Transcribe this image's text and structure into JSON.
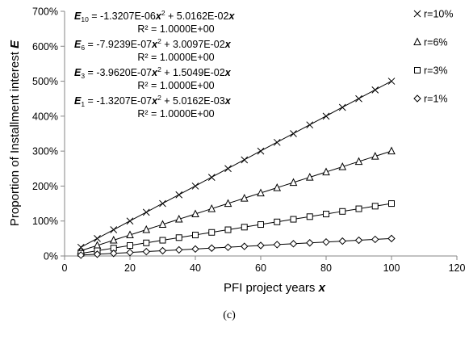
{
  "chart_data": {
    "type": "scatter",
    "xlabel_text": "PFI project years ",
    "xlabel_var": "x",
    "ylabel_text": "Proportion of Installment interest ",
    "ylabel_var": "E",
    "xlim": [
      0,
      120
    ],
    "ylim": [
      0,
      7
    ],
    "x_ticks": [
      0,
      20,
      40,
      60,
      80,
      100,
      120
    ],
    "x_tick_labels": [
      "0",
      "20",
      "40",
      "60",
      "80",
      "100",
      "120"
    ],
    "y_ticks": [
      0,
      1,
      2,
      3,
      4,
      5,
      6,
      7
    ],
    "y_tick_labels": [
      "0%",
      "100%",
      "200%",
      "300%",
      "400%",
      "500%",
      "600%",
      "700%"
    ],
    "grid": false,
    "legend_position": "top-right outside",
    "x": [
      5,
      10,
      15,
      20,
      25,
      30,
      35,
      40,
      45,
      50,
      55,
      60,
      65,
      70,
      75,
      80,
      85,
      90,
      95,
      100
    ],
    "series": [
      {
        "name": "r=10%",
        "marker": "x",
        "values": [
          0.25,
          0.5,
          0.75,
          1.0,
          1.25,
          1.5,
          1.75,
          2.0,
          2.25,
          2.5,
          2.75,
          3.0,
          3.25,
          3.5,
          3.75,
          4.0,
          4.25,
          4.5,
          4.75,
          5.0
        ],
        "trend_a": -1.3207e-06,
        "trend_b": 0.050162
      },
      {
        "name": "r=6%",
        "marker": "triangle",
        "values": [
          0.15,
          0.3,
          0.45,
          0.6,
          0.75,
          0.9,
          1.05,
          1.2,
          1.35,
          1.5,
          1.65,
          1.8,
          1.95,
          2.1,
          2.25,
          2.4,
          2.55,
          2.7,
          2.85,
          3.0
        ],
        "trend_a": -7.9239e-07,
        "trend_b": 0.030097
      },
      {
        "name": "r=3%",
        "marker": "square",
        "values": [
          0.075,
          0.15,
          0.225,
          0.3,
          0.375,
          0.45,
          0.525,
          0.6,
          0.675,
          0.75,
          0.825,
          0.9,
          0.975,
          1.05,
          1.125,
          1.2,
          1.275,
          1.35,
          1.425,
          1.5
        ],
        "trend_a": -3.962e-07,
        "trend_b": 0.015049
      },
      {
        "name": "r=1%",
        "marker": "diamond",
        "values": [
          0.025,
          0.05,
          0.075,
          0.1,
          0.125,
          0.15,
          0.175,
          0.2,
          0.225,
          0.25,
          0.275,
          0.3,
          0.325,
          0.35,
          0.375,
          0.4,
          0.425,
          0.45,
          0.475,
          0.5
        ],
        "trend_a": -1.3207e-07,
        "trend_b": 0.0050162
      }
    ],
    "equations": [
      {
        "letter": "E",
        "sub": "10",
        "body": " = -1.3207E-06",
        "x2": "x",
        "sup": "2",
        "mid": " + 5.0162E-02",
        "x1": "x",
        "r2": "R² = 1.0000E+00"
      },
      {
        "letter": "E",
        "sub": "6",
        "body": " = -7.9239E-07",
        "x2": "x",
        "sup": "2",
        "mid": " + 3.0097E-02",
        "x1": "x",
        "r2": "R² = 1.0000E+00"
      },
      {
        "letter": "E",
        "sub": "3",
        "body": " = -3.9620E-07",
        "x2": "x",
        "sup": "2",
        "mid": " + 1.5049E-02",
        "x1": "x",
        "r2": "R² = 1.0000E+00"
      },
      {
        "letter": "E",
        "sub": "1",
        "body": " = -1.3207E-07",
        "x2": "x",
        "sup": "2",
        "mid": " + 5.0162E-03",
        "x1": "x",
        "r2": "R² = 1.0000E+00"
      }
    ],
    "caption": "(c)"
  }
}
